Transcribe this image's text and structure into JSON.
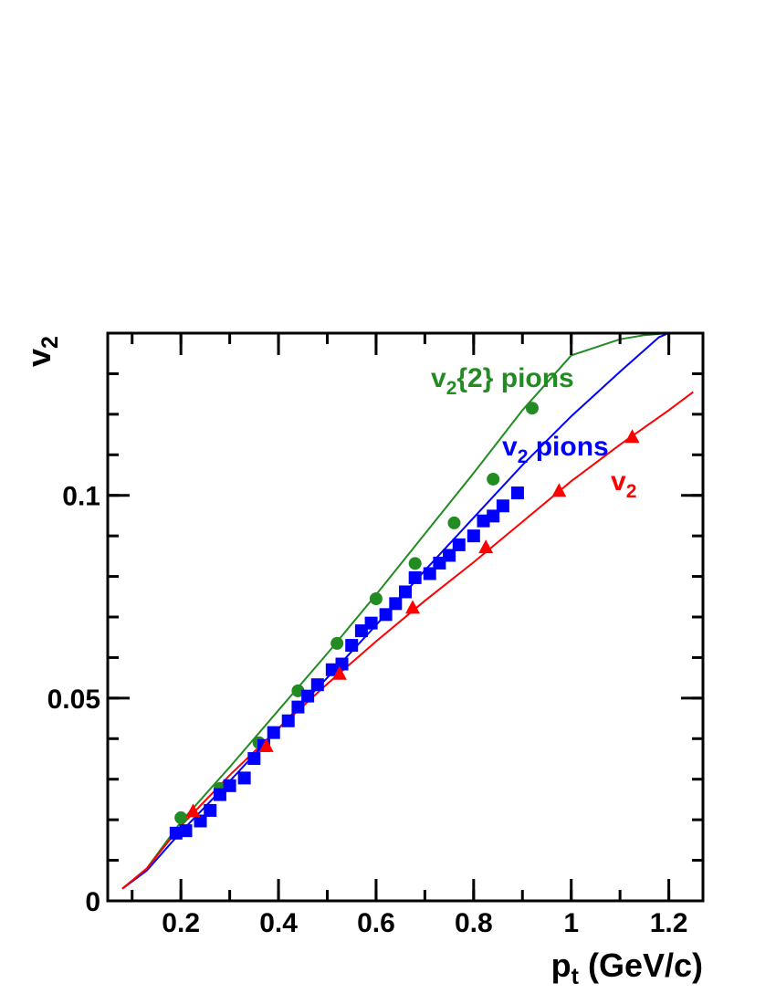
{
  "chart_data": {
    "type": "scatter",
    "xlabel": {
      "base": "p",
      "sub": "t",
      "rest": " (GeV/c)"
    },
    "ylabel": {
      "base": "v",
      "sub": "2"
    },
    "xlim": [
      0.05,
      1.27
    ],
    "ylim": [
      0,
      0.14
    ],
    "xticks": [
      {
        "value": 0.2,
        "label": "0.2"
      },
      {
        "value": 0.4,
        "label": "0.4"
      },
      {
        "value": 0.6,
        "label": "0.6"
      },
      {
        "value": 0.8,
        "label": "0.8"
      },
      {
        "value": 1.0,
        "label": "1"
      },
      {
        "value": 1.2,
        "label": "1.2"
      }
    ],
    "yticks": [
      {
        "value": 0,
        "label": "0"
      },
      {
        "value": 0.05,
        "label": "0.05"
      },
      {
        "value": 0.1,
        "label": "0.1"
      }
    ],
    "grid": false,
    "series": [
      {
        "name": {
          "base": "v",
          "sub": "2",
          "rest": "{2} pions"
        },
        "color": "#228B22",
        "marker": "circle",
        "points": [
          [
            0.2,
            0.0205
          ],
          [
            0.28,
            0.0277
          ],
          [
            0.36,
            0.039
          ],
          [
            0.44,
            0.0518
          ],
          [
            0.52,
            0.0635
          ],
          [
            0.6,
            0.0745
          ],
          [
            0.68,
            0.0832
          ],
          [
            0.76,
            0.0932
          ],
          [
            0.84,
            0.104
          ],
          [
            0.92,
            0.1215
          ]
        ],
        "line": [
          [
            0.08,
            0.003
          ],
          [
            0.13,
            0.008
          ],
          [
            0.2,
            0.0195
          ],
          [
            0.3,
            0.033
          ],
          [
            0.4,
            0.047
          ],
          [
            0.5,
            0.061
          ],
          [
            0.6,
            0.0755
          ],
          [
            0.7,
            0.0905
          ],
          [
            0.8,
            0.1055
          ],
          [
            0.9,
            0.121
          ],
          [
            1.0,
            0.1345
          ],
          [
            1.1,
            0.1385
          ],
          [
            1.15,
            0.1395
          ],
          [
            1.2,
            0.14
          ]
        ]
      },
      {
        "name": {
          "base": "v",
          "sub": "2",
          "rest": " pions"
        },
        "color": "#0000FF",
        "marker": "square",
        "points": [
          [
            0.19,
            0.0167
          ],
          [
            0.21,
            0.0173
          ],
          [
            0.24,
            0.0197
          ],
          [
            0.26,
            0.0223
          ],
          [
            0.28,
            0.0262
          ],
          [
            0.3,
            0.0284
          ],
          [
            0.33,
            0.0303
          ],
          [
            0.35,
            0.0351
          ],
          [
            0.37,
            0.0383
          ],
          [
            0.39,
            0.0415
          ],
          [
            0.42,
            0.0444
          ],
          [
            0.44,
            0.0478
          ],
          [
            0.46,
            0.0505
          ],
          [
            0.48,
            0.0533
          ],
          [
            0.51,
            0.057
          ],
          [
            0.53,
            0.0584
          ],
          [
            0.55,
            0.063
          ],
          [
            0.57,
            0.0666
          ],
          [
            0.59,
            0.0685
          ],
          [
            0.62,
            0.0706
          ],
          [
            0.64,
            0.0733
          ],
          [
            0.66,
            0.0762
          ],
          [
            0.68,
            0.0797
          ],
          [
            0.71,
            0.0807
          ],
          [
            0.73,
            0.0833
          ],
          [
            0.75,
            0.0852
          ],
          [
            0.77,
            0.0878
          ],
          [
            0.8,
            0.09
          ],
          [
            0.82,
            0.0937
          ],
          [
            0.84,
            0.0949
          ],
          [
            0.86,
            0.0974
          ],
          [
            0.89,
            0.1006
          ]
        ],
        "line": [
          [
            0.08,
            0.003
          ],
          [
            0.13,
            0.0075
          ],
          [
            0.2,
            0.017
          ],
          [
            0.3,
            0.0295
          ],
          [
            0.4,
            0.0425
          ],
          [
            0.5,
            0.055
          ],
          [
            0.6,
            0.068
          ],
          [
            0.7,
            0.0815
          ],
          [
            0.8,
            0.0945
          ],
          [
            0.9,
            0.1075
          ],
          [
            1.0,
            0.1195
          ],
          [
            1.1,
            0.1305
          ],
          [
            1.18,
            0.139
          ],
          [
            1.2,
            0.14
          ],
          [
            1.25,
            0.14
          ]
        ]
      },
      {
        "name": {
          "base": "v",
          "sub": "2",
          "rest": ""
        },
        "color": "#FF0000",
        "marker": "triangle",
        "points": [
          [
            0.225,
            0.0222
          ],
          [
            0.375,
            0.0383
          ],
          [
            0.525,
            0.0561
          ],
          [
            0.675,
            0.0724
          ],
          [
            0.825,
            0.0873
          ],
          [
            0.975,
            0.1012
          ],
          [
            1.125,
            0.1145
          ]
        ],
        "line": [
          [
            0.08,
            0.003
          ],
          [
            0.13,
            0.008
          ],
          [
            0.2,
            0.0185
          ],
          [
            0.3,
            0.031
          ],
          [
            0.4,
            0.0425
          ],
          [
            0.5,
            0.0535
          ],
          [
            0.6,
            0.064
          ],
          [
            0.7,
            0.074
          ],
          [
            0.8,
            0.0835
          ],
          [
            0.9,
            0.0935
          ],
          [
            1.0,
            0.1035
          ],
          [
            1.1,
            0.1125
          ],
          [
            1.2,
            0.121
          ],
          [
            1.25,
            0.1255
          ]
        ]
      }
    ]
  }
}
